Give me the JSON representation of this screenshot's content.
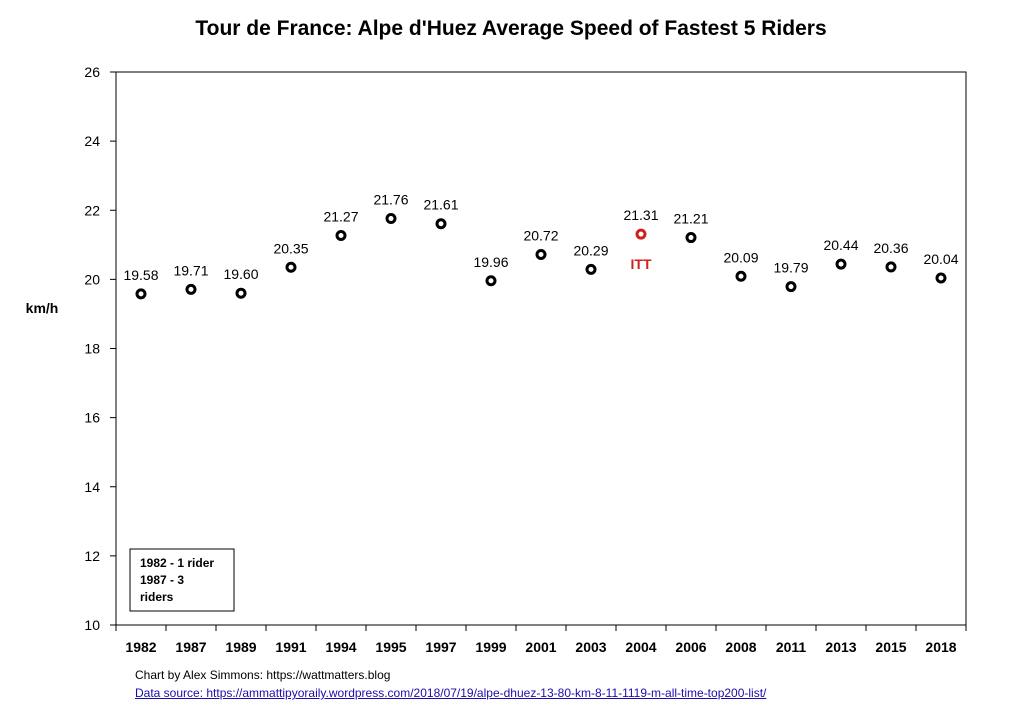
{
  "chart_data": {
    "type": "scatter",
    "title": "Tour de France: Alpe d'Huez Average Speed of Fastest 5 Riders",
    "ylabel": "km/h",
    "xlabel": "",
    "ylim": [
      10,
      26
    ],
    "yticks": [
      "10",
      "12",
      "14",
      "16",
      "18",
      "20",
      "22",
      "24",
      "26"
    ],
    "categories": [
      "1982",
      "1987",
      "1989",
      "1991",
      "1994",
      "1995",
      "1997",
      "1999",
      "2001",
      "2003",
      "2004",
      "2006",
      "2008",
      "2011",
      "2013",
      "2015",
      "2018"
    ],
    "values": [
      19.58,
      19.71,
      19.6,
      20.35,
      21.27,
      21.76,
      21.61,
      19.96,
      20.72,
      20.29,
      21.31,
      21.21,
      20.09,
      19.79,
      20.44,
      20.36,
      20.04
    ],
    "labels": [
      "19.58",
      "19.71",
      "19.60",
      "20.35",
      "21.27",
      "21.76",
      "21.61",
      "19.96",
      "20.72",
      "20.29",
      "21.31",
      "21.21",
      "20.09",
      "19.79",
      "20.44",
      "20.36",
      "20.04"
    ],
    "highlight": {
      "category": "2004",
      "annotation": "ITT",
      "color": "#d0201e"
    },
    "marker_color": "#000000",
    "grid": false,
    "note_lines": [
      "1982 - 1 rider",
      "1987 - 3",
      "riders"
    ]
  },
  "footer": {
    "credit": "Chart by Alex Simmons: https://wattmatters.blog",
    "source": "Data source: https://ammattipyoraily.wordpress.com/2018/07/19/alpe-dhuez-13-80-km-8-11-1119-m-all-time-top200-list/"
  }
}
